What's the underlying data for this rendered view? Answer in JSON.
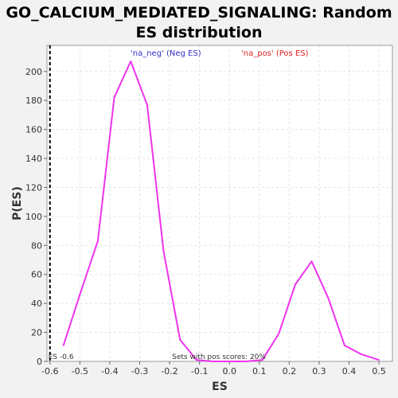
{
  "chart_data": {
    "type": "line",
    "title": "GO_CALCIUM_MEDIATED_SIGNALING: Random ES distribution",
    "xlabel": "ES",
    "ylabel": "P(ES)",
    "xlim": [
      -0.61,
      0.545
    ],
    "ylim": [
      0,
      218
    ],
    "x_ticks": [
      "-0.6",
      "-0.5",
      "-0.4",
      "-0.3",
      "-0.2",
      "-0.1",
      "0.0",
      "0.1",
      "0.2",
      "0.3",
      "0.4",
      "0.5"
    ],
    "y_ticks": [
      "0",
      "20",
      "40",
      "60",
      "80",
      "100",
      "120",
      "140",
      "160",
      "180",
      "200"
    ],
    "grid": true,
    "legend": [
      {
        "label": "'na_neg' (Neg ES)",
        "color": "#3333cc"
      },
      {
        "label": "'na_pos' (Pos ES)",
        "color": "#dd2222"
      }
    ],
    "series": [
      {
        "color": "#ee33ee",
        "x": [
          -0.555,
          -0.5,
          -0.44,
          -0.385,
          -0.33,
          -0.275,
          -0.22,
          -0.165,
          -0.11,
          -0.055,
          0.0,
          0.055,
          0.11,
          0.165,
          0.22,
          0.275,
          0.33,
          0.385,
          0.44,
          0.5
        ],
        "y": [
          11,
          46,
          83,
          182,
          207,
          177,
          76,
          15,
          1,
          0,
          0,
          0,
          1,
          19,
          53,
          69,
          44,
          11,
          5,
          1
        ]
      }
    ],
    "es_marker": {
      "value": -0.6,
      "label": "ES -0.6"
    },
    "annotation": "Sets with pos scores: 20%"
  }
}
